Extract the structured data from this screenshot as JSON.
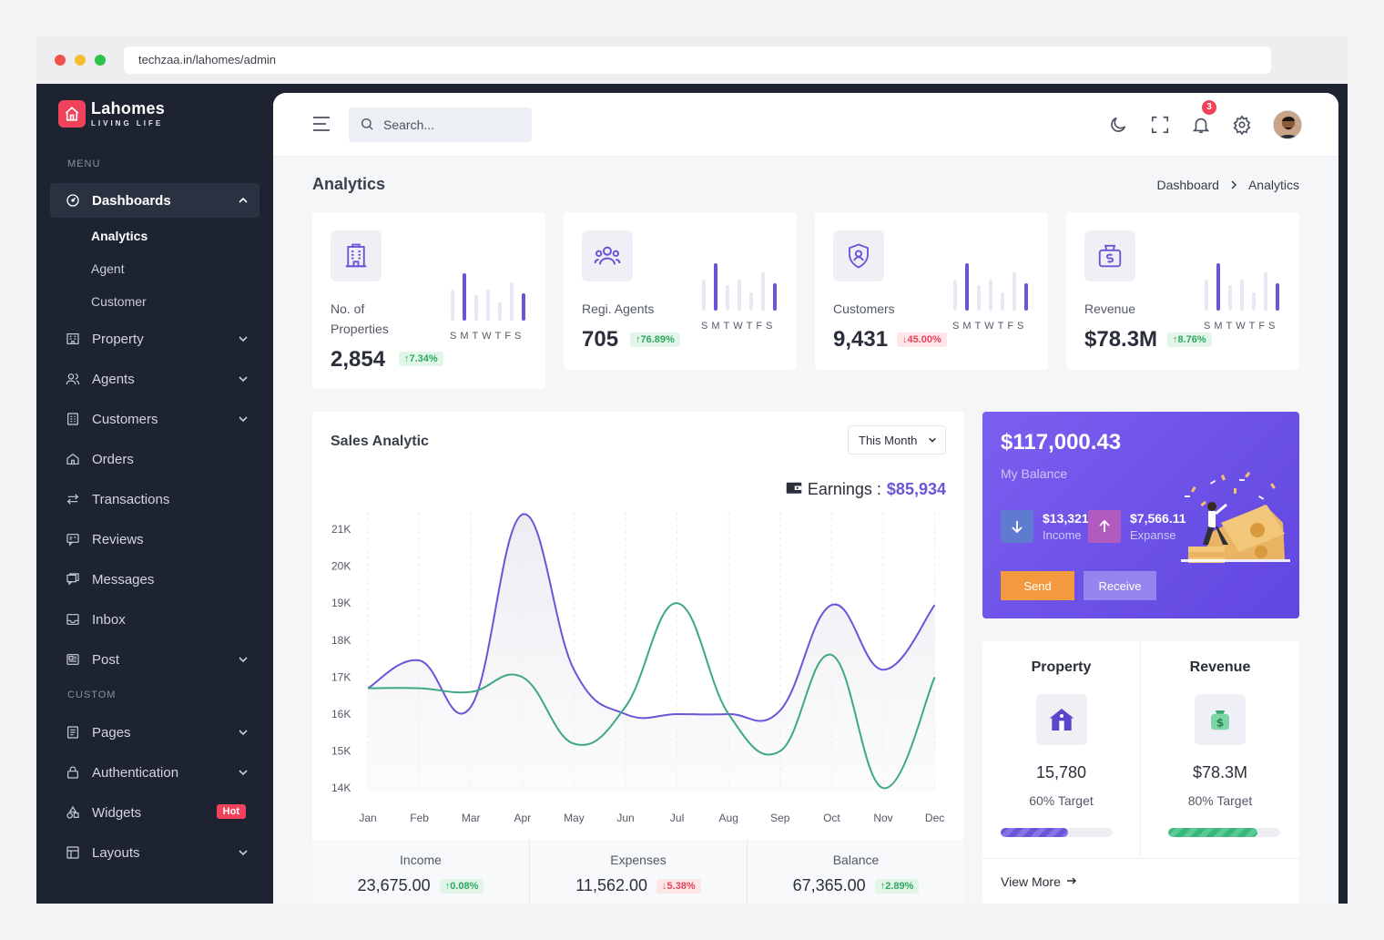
{
  "browser": {
    "url": "techzaa.in/lahomes/admin"
  },
  "brand": {
    "name": "Lahomes",
    "tagline": "LIVING LIFE",
    "accent": "#f0425a"
  },
  "sidebar": {
    "menu_label": "MENU",
    "custom_label": "CUSTOM",
    "dashboards": {
      "label": "Dashboards",
      "icon": "speedometer-icon",
      "expanded": true
    },
    "sub_items": [
      {
        "label": "Analytics",
        "active": true
      },
      {
        "label": "Agent",
        "active": false
      },
      {
        "label": "Customer",
        "active": false
      }
    ],
    "items": [
      {
        "label": "Property",
        "icon": "building-icon",
        "has_children": true
      },
      {
        "label": "Agents",
        "icon": "users-icon",
        "has_children": true
      },
      {
        "label": "Customers",
        "icon": "contacts-icon",
        "has_children": true
      },
      {
        "label": "Orders",
        "icon": "home-icon",
        "has_children": false
      },
      {
        "label": "Transactions",
        "icon": "swap-icon",
        "has_children": false
      },
      {
        "label": "Reviews",
        "icon": "chat-icon",
        "has_children": false
      },
      {
        "label": "Messages",
        "icon": "messages-icon",
        "has_children": false
      },
      {
        "label": "Inbox",
        "icon": "inbox-icon",
        "has_children": false
      },
      {
        "label": "Post",
        "icon": "post-icon",
        "has_children": true
      }
    ],
    "custom_items": [
      {
        "label": "Pages",
        "icon": "pages-icon",
        "has_children": true
      },
      {
        "label": "Authentication",
        "icon": "lock-icon",
        "has_children": true
      },
      {
        "label": "Widgets",
        "icon": "widgets-icon",
        "badge": "Hot"
      },
      {
        "label": "Layouts",
        "icon": "layout-icon",
        "has_children": true
      }
    ]
  },
  "topbar": {
    "search_placeholder": "Search...",
    "notification_count": "3",
    "icons": [
      "menu-icon",
      "search-icon",
      "moon-icon",
      "fullscreen-icon",
      "bell-icon",
      "gear-icon",
      "avatar"
    ]
  },
  "page": {
    "title": "Analytics",
    "breadcrumb": [
      "Dashboard",
      "Analytics"
    ]
  },
  "stats": [
    {
      "label": "No. of Properties",
      "value": "2,854",
      "change": "7.34%",
      "direction": "up",
      "icon": "building-icon",
      "days": "SMTWTFS"
    },
    {
      "label": "Regi. Agents",
      "value": "705",
      "change": "76.89%",
      "direction": "up",
      "icon": "users-icon",
      "days": "SMTWTFS"
    },
    {
      "label": "Customers",
      "value": "9,431",
      "change": "45.00%",
      "direction": "down",
      "icon": "shield-user-icon",
      "days": "SMTWTFS"
    },
    {
      "label": "Revenue",
      "value": "$78.3M",
      "change": "8.76%",
      "direction": "up",
      "icon": "money-bag-icon",
      "days": "SMTWTFS"
    }
  ],
  "sales": {
    "title": "Sales Analytic",
    "period": "This Month",
    "earnings_label": "Earnings :",
    "earnings_value": "$85,934",
    "footer": [
      {
        "label": "Income",
        "value": "23,675.00",
        "change": "0.08%",
        "direction": "up"
      },
      {
        "label": "Expenses",
        "value": "11,562.00",
        "change": "5.38%",
        "direction": "down"
      },
      {
        "label": "Balance",
        "value": "67,365.00",
        "change": "2.89%",
        "direction": "up"
      }
    ]
  },
  "chart_data": {
    "type": "line",
    "categories": [
      "Jan",
      "Feb",
      "Mar",
      "Apr",
      "May",
      "Jun",
      "Jul",
      "Aug",
      "Sep",
      "Oct",
      "Nov",
      "Dec"
    ],
    "y_ticks": [
      "21K",
      "20K",
      "19K",
      "18K",
      "17K",
      "16K",
      "15K",
      "14K"
    ],
    "ylim": [
      14000,
      21000
    ],
    "grid": "vertical-dashed",
    "series": [
      {
        "color": "#6a55d8",
        "values": [
          16700,
          17450,
          16200,
          21400,
          17200,
          16000,
          16000,
          16000,
          16100,
          18950,
          17200,
          18950
        ]
      },
      {
        "color": "#3da882",
        "values": [
          16700,
          16700,
          16600,
          17000,
          15200,
          16200,
          19000,
          16000,
          15000,
          17600,
          14000,
          17000
        ]
      }
    ]
  },
  "balance": {
    "value": "$117,000.43",
    "label": "My Balance",
    "income_value": "$13,321.12",
    "income_label": "Income",
    "expense_value": "$7,566.11",
    "expense_label": "Expanse",
    "send_label": "Send",
    "receive_label": "Receive"
  },
  "property_revenue": {
    "property": {
      "title": "Property",
      "value": "15,780",
      "target": "60% Target",
      "progress": 0.6
    },
    "revenue": {
      "title": "Revenue",
      "value": "$78.3M",
      "target": "80% Target",
      "progress": 0.8
    },
    "view_more": "View More"
  }
}
